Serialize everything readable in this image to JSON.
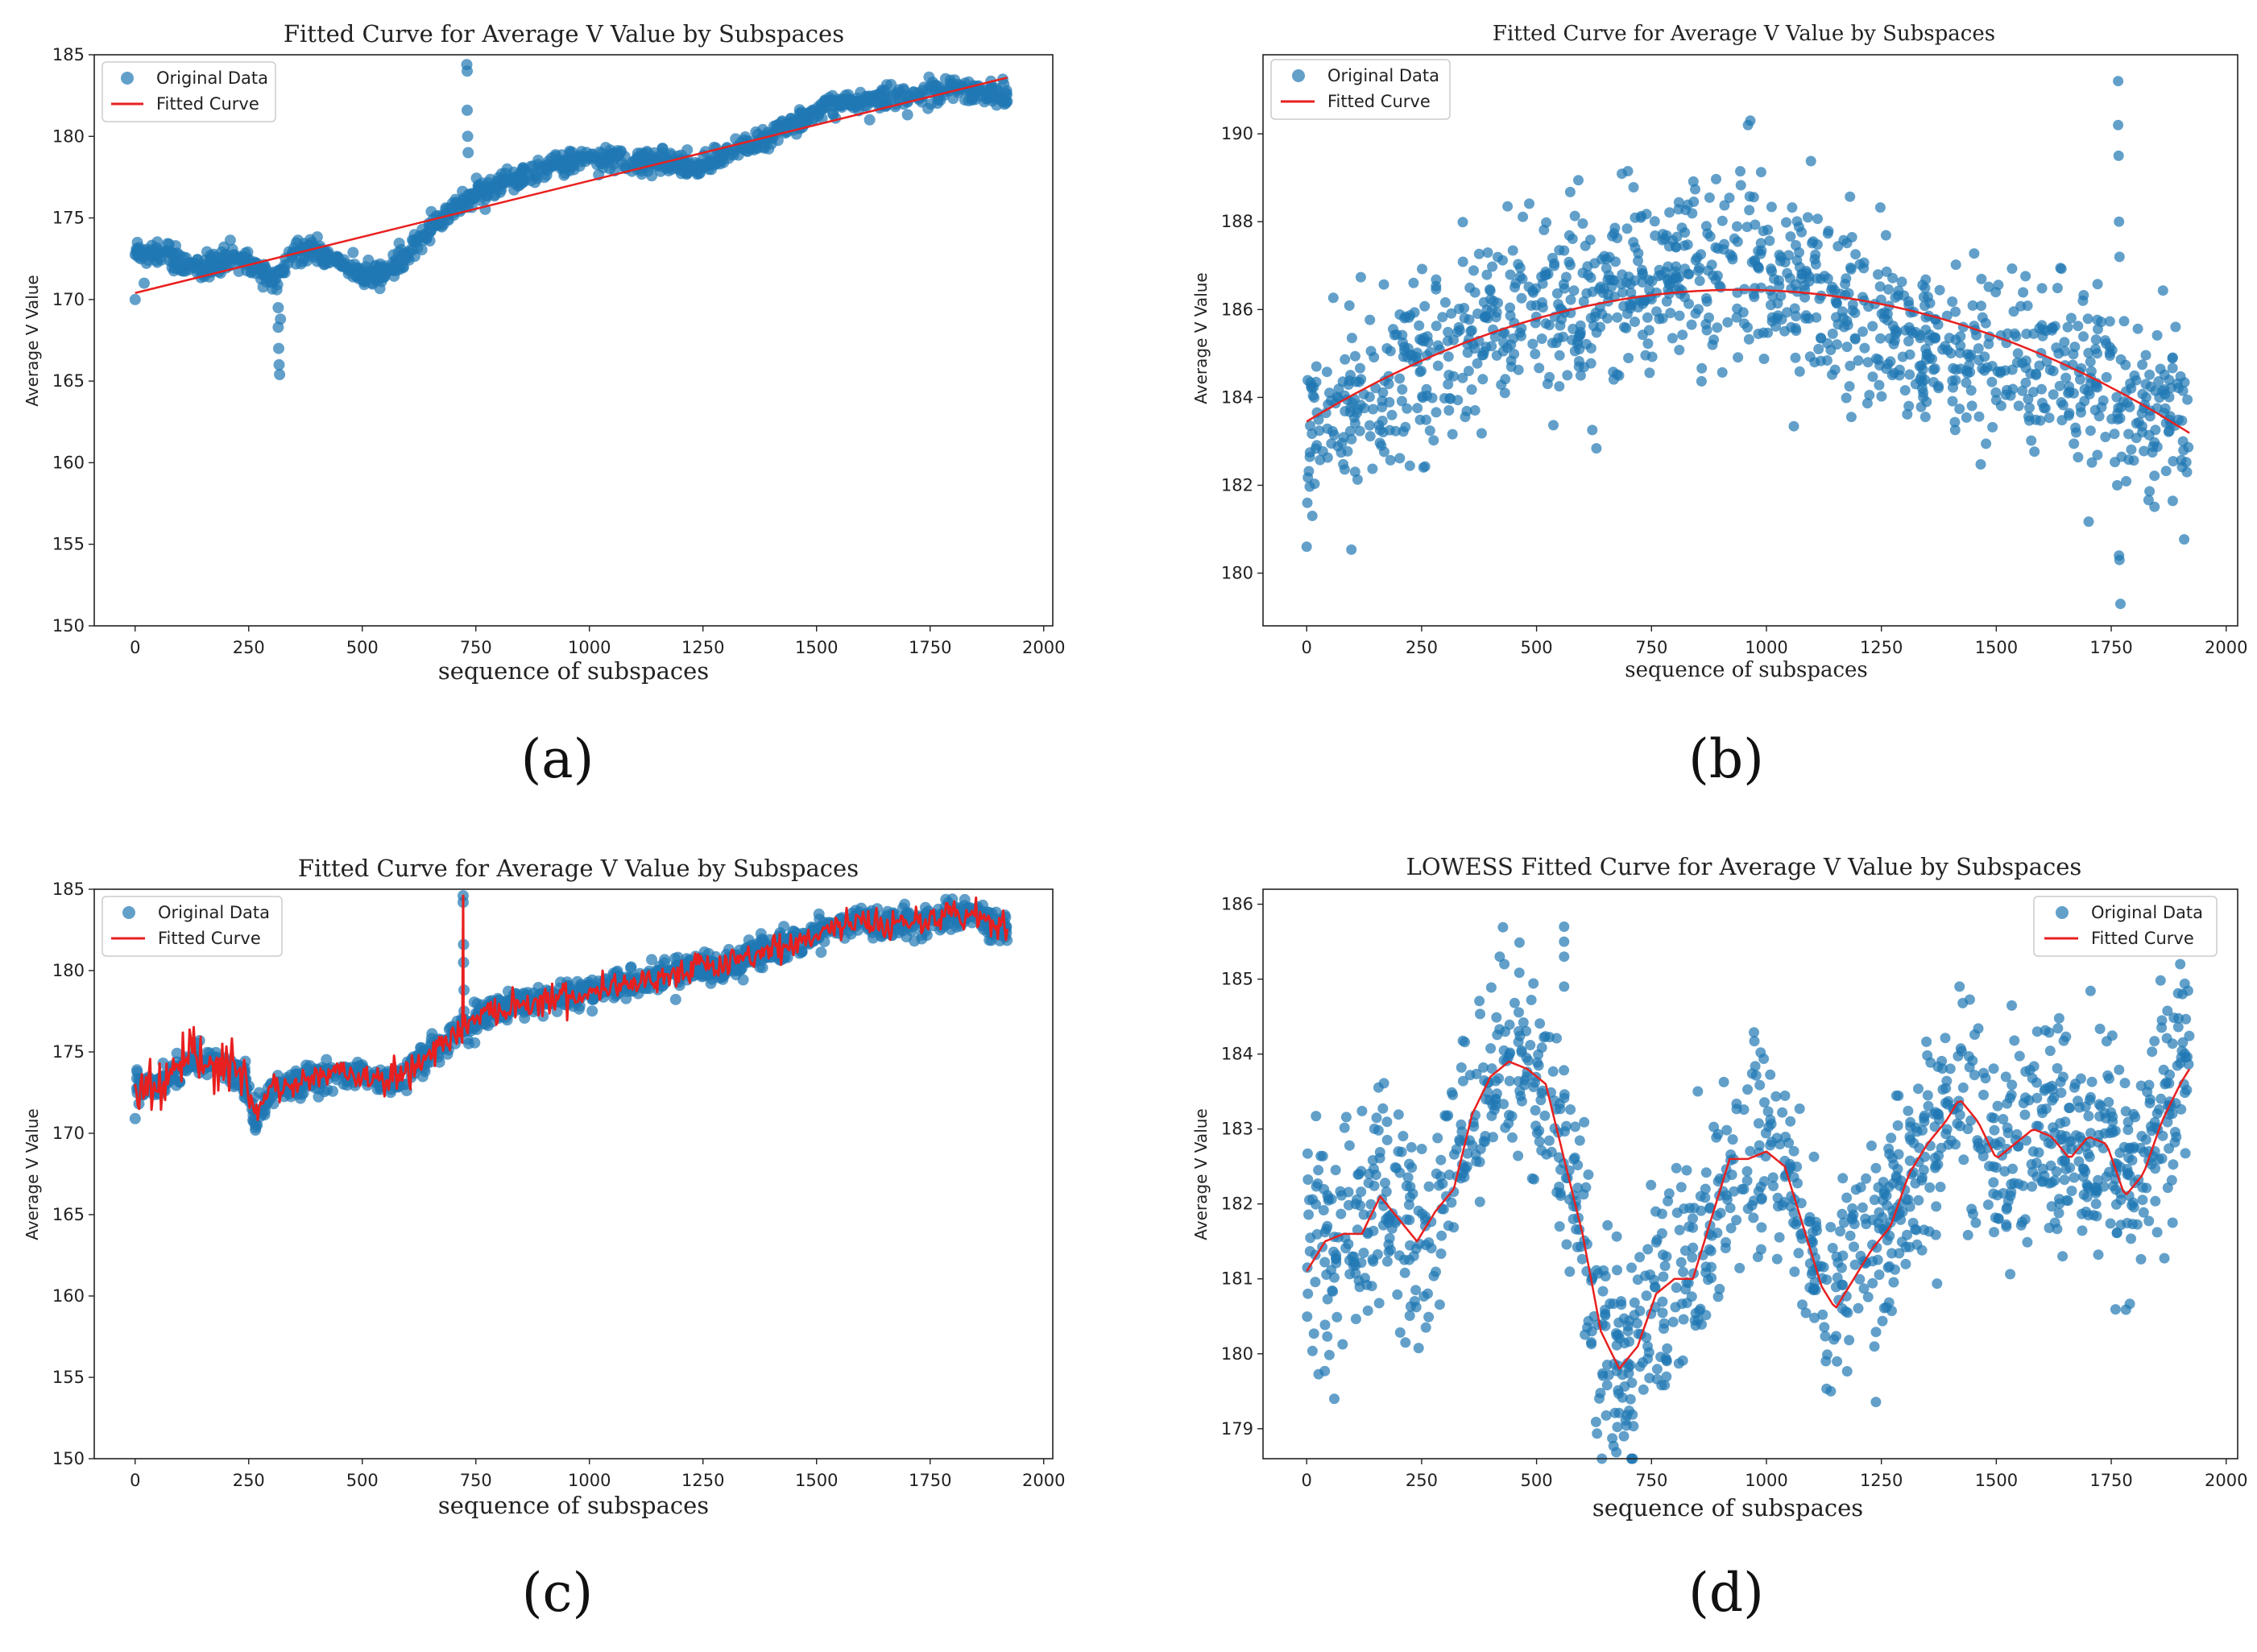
{
  "colors": {
    "points": "#1f77b4",
    "fit": "#e8201f",
    "axis": "#222222",
    "legend_border": "#cccccc"
  },
  "panel_labels": [
    "(a)",
    "(b)",
    "(c)",
    "(d)"
  ],
  "chart_data": [
    {
      "id": "a",
      "type": "scatter",
      "title": "Fitted Curve for Average V Value by Subspaces",
      "xlabel": "sequence of subspaces",
      "ylabel": "Average V Value",
      "xlim": [
        -90,
        2020
      ],
      "ylim": [
        150,
        185
      ],
      "xticks": [
        0,
        250,
        500,
        750,
        1000,
        1250,
        1500,
        1750,
        2000
      ],
      "yticks": [
        150,
        155,
        160,
        165,
        170,
        175,
        180,
        185
      ],
      "legend": {
        "position": "top-left",
        "entries": [
          "Original Data",
          "Fitted Curve"
        ]
      },
      "scatter": {
        "name": "Original Data",
        "n": 1100,
        "noise": 0.35,
        "trend": [
          [
            0,
            172.8
          ],
          [
            40,
            173.1
          ],
          [
            100,
            172.3
          ],
          [
            150,
            172.0
          ],
          [
            200,
            172.5
          ],
          [
            260,
            172.4
          ],
          [
            300,
            171.0
          ],
          [
            340,
            172.6
          ],
          [
            380,
            173.1
          ],
          [
            420,
            172.8
          ],
          [
            460,
            172.0
          ],
          [
            520,
            171.3
          ],
          [
            560,
            172.0
          ],
          [
            600,
            172.8
          ],
          [
            650,
            174.3
          ],
          [
            700,
            175.5
          ],
          [
            750,
            176.5
          ],
          [
            800,
            177.0
          ],
          [
            850,
            177.5
          ],
          [
            900,
            178.2
          ],
          [
            950,
            178.3
          ],
          [
            1000,
            178.7
          ],
          [
            1050,
            178.6
          ],
          [
            1100,
            178.4
          ],
          [
            1150,
            178.6
          ],
          [
            1200,
            178.2
          ],
          [
            1250,
            178.2
          ],
          [
            1300,
            178.8
          ],
          [
            1350,
            179.5
          ],
          [
            1400,
            180.0
          ],
          [
            1450,
            180.8
          ],
          [
            1500,
            181.5
          ],
          [
            1550,
            182.0
          ],
          [
            1600,
            182.2
          ],
          [
            1650,
            182.3
          ],
          [
            1700,
            182.4
          ],
          [
            1750,
            182.7
          ],
          [
            1800,
            183.0
          ],
          [
            1850,
            182.8
          ],
          [
            1920,
            182.5
          ]
        ],
        "outliers": [
          [
            315,
            169.5
          ],
          [
            315,
            168.3
          ],
          [
            316,
            167.0
          ],
          [
            317,
            166.0
          ],
          [
            318,
            165.4
          ],
          [
            312,
            170.6
          ],
          [
            320,
            168.8
          ],
          [
            730,
            184.4
          ],
          [
            731,
            184.0
          ],
          [
            731,
            181.6
          ],
          [
            732,
            180.0
          ],
          [
            733,
            179.0
          ],
          [
            20,
            171.0
          ],
          [
            0,
            170.0
          ],
          [
            5,
            173.5
          ],
          [
            1910,
            183.5
          ]
        ]
      },
      "fit": {
        "name": "Fitted Curve",
        "kind": "linear",
        "x": [
          0,
          1920
        ],
        "y": [
          170.4,
          183.6
        ]
      }
    },
    {
      "id": "b",
      "type": "scatter",
      "title": "Fitted Curve for Average V Value by Subspaces",
      "xlabel": "sequence of subspaces",
      "ylabel": "Average V Value",
      "xlim": [
        -95,
        2025
      ],
      "ylim": [
        178.8,
        191.8
      ],
      "xticks": [
        0,
        250,
        500,
        750,
        1000,
        1250,
        1500,
        1750,
        2000
      ],
      "yticks": [
        180,
        182,
        184,
        186,
        188,
        190
      ],
      "legend": {
        "position": "top-left",
        "entries": [
          "Original Data",
          "Fitted Curve"
        ]
      },
      "scatter": {
        "name": "Original Data",
        "n": 1150,
        "noise": 1.05,
        "trend": [
          [
            0,
            183.2
          ],
          [
            100,
            184.0
          ],
          [
            200,
            184.6
          ],
          [
            300,
            185.1
          ],
          [
            400,
            185.6
          ],
          [
            500,
            186.0
          ],
          [
            600,
            186.1
          ],
          [
            700,
            186.3
          ],
          [
            800,
            186.8
          ],
          [
            900,
            187.0
          ],
          [
            1000,
            186.8
          ],
          [
            1100,
            186.3
          ],
          [
            1200,
            185.8
          ],
          [
            1300,
            185.2
          ],
          [
            1400,
            185.0
          ],
          [
            1500,
            184.9
          ],
          [
            1600,
            184.8
          ],
          [
            1700,
            184.5
          ],
          [
            1800,
            184.0
          ],
          [
            1920,
            183.2
          ]
        ],
        "outliers": [
          [
            0,
            180.6
          ],
          [
            1765,
            191.2
          ],
          [
            1765,
            190.2
          ],
          [
            1766,
            189.5
          ],
          [
            1767,
            188.0
          ],
          [
            1768,
            187.2
          ],
          [
            1767,
            180.4
          ],
          [
            1768,
            180.3
          ],
          [
            1770,
            179.3
          ],
          [
            1763,
            182.0
          ],
          [
            1764,
            183.5
          ],
          [
            960,
            190.2
          ],
          [
            965,
            190.3
          ]
        ]
      },
      "fit": {
        "name": "Fitted Curve",
        "kind": "quadratic",
        "vertex_x": 940,
        "vertex_y": 186.45,
        "x": [
          0,
          1920
        ],
        "y_at_start": 183.45
      }
    },
    {
      "id": "c",
      "type": "scatter",
      "title": "Fitted Curve for Average V Value by Subspaces",
      "xlabel": "sequence of subspaces",
      "ylabel": "Average V Value",
      "xlim": [
        -90,
        2020
      ],
      "ylim": [
        150,
        185
      ],
      "xticks": [
        0,
        250,
        500,
        750,
        1000,
        1250,
        1500,
        1750,
        2000
      ],
      "yticks": [
        150,
        155,
        160,
        165,
        170,
        175,
        180,
        185
      ],
      "legend": {
        "position": "top-left",
        "entries": [
          "Original Data",
          "Fitted Curve"
        ]
      },
      "scatter": {
        "name": "Original Data",
        "n": 1400,
        "noise": 0.45,
        "trend": [
          [
            0,
            173.0
          ],
          [
            40,
            172.9
          ],
          [
            80,
            173.6
          ],
          [
            120,
            174.5
          ],
          [
            160,
            174.6
          ],
          [
            200,
            174.0
          ],
          [
            240,
            173.3
          ],
          [
            265,
            171.0
          ],
          [
            300,
            172.8
          ],
          [
            350,
            173.0
          ],
          [
            400,
            173.5
          ],
          [
            450,
            173.8
          ],
          [
            500,
            173.5
          ],
          [
            550,
            173.2
          ],
          [
            600,
            173.8
          ],
          [
            650,
            175.0
          ],
          [
            700,
            176.0
          ],
          [
            720,
            176.5
          ],
          [
            760,
            177.3
          ],
          [
            800,
            177.6
          ],
          [
            850,
            178.0
          ],
          [
            900,
            178.2
          ],
          [
            950,
            178.4
          ],
          [
            1000,
            178.6
          ],
          [
            1050,
            179.2
          ],
          [
            1100,
            179.3
          ],
          [
            1150,
            179.6
          ],
          [
            1200,
            179.9
          ],
          [
            1250,
            180.3
          ],
          [
            1300,
            180.2
          ],
          [
            1350,
            180.8
          ],
          [
            1400,
            181.3
          ],
          [
            1450,
            181.6
          ],
          [
            1500,
            182.3
          ],
          [
            1550,
            182.8
          ],
          [
            1600,
            183.0
          ],
          [
            1650,
            182.8
          ],
          [
            1700,
            183.1
          ],
          [
            1750,
            183.1
          ],
          [
            1800,
            183.5
          ],
          [
            1850,
            183.4
          ],
          [
            1920,
            182.4
          ]
        ],
        "outliers": [
          [
            722,
            184.6
          ],
          [
            722,
            184.2
          ],
          [
            723,
            181.6
          ],
          [
            723,
            180.5
          ],
          [
            724,
            178.8
          ],
          [
            724,
            177.5
          ],
          [
            0,
            170.9
          ],
          [
            265,
            170.2
          ]
        ]
      },
      "fit": {
        "name": "Fitted Curve",
        "kind": "interpolating",
        "follows": "Original Data"
      }
    },
    {
      "id": "d",
      "type": "scatter",
      "title": "LOWESS Fitted Curve for Average V Value by Subspaces",
      "xlabel": "sequence of subspaces",
      "ylabel": "Average V Value",
      "xlim": [
        -95,
        2025
      ],
      "ylim": [
        178.6,
        186.2
      ],
      "xticks": [
        0,
        250,
        500,
        750,
        1000,
        1250,
        1500,
        1750,
        2000
      ],
      "yticks": [
        179,
        180,
        181,
        182,
        183,
        184,
        185,
        186
      ],
      "legend": {
        "position": "top-right",
        "entries": [
          "Original Data",
          "Fitted Curve"
        ]
      },
      "scatter": {
        "name": "Original Data",
        "n": 1300,
        "noise": 0.7,
        "trend": [
          [
            0,
            181.1
          ],
          [
            40,
            181.5
          ],
          [
            80,
            181.6
          ],
          [
            120,
            181.6
          ],
          [
            160,
            182.1
          ],
          [
            200,
            181.8
          ],
          [
            240,
            181.5
          ],
          [
            280,
            181.9
          ],
          [
            320,
            182.2
          ],
          [
            360,
            183.2
          ],
          [
            400,
            183.7
          ],
          [
            440,
            183.9
          ],
          [
            480,
            183.8
          ],
          [
            520,
            183.6
          ],
          [
            560,
            182.6
          ],
          [
            600,
            181.6
          ],
          [
            640,
            180.3
          ],
          [
            680,
            179.8
          ],
          [
            720,
            180.1
          ],
          [
            760,
            180.8
          ],
          [
            800,
            181.0
          ],
          [
            840,
            181.0
          ],
          [
            880,
            181.8
          ],
          [
            920,
            182.6
          ],
          [
            960,
            182.6
          ],
          [
            1000,
            182.7
          ],
          [
            1040,
            182.5
          ],
          [
            1080,
            181.7
          ],
          [
            1120,
            180.9
          ],
          [
            1150,
            180.6
          ],
          [
            1190,
            181.0
          ],
          [
            1230,
            181.4
          ],
          [
            1270,
            181.7
          ],
          [
            1310,
            182.4
          ],
          [
            1350,
            182.8
          ],
          [
            1390,
            183.1
          ],
          [
            1420,
            183.4
          ],
          [
            1460,
            183.1
          ],
          [
            1500,
            182.6
          ],
          [
            1540,
            182.8
          ],
          [
            1580,
            183.0
          ],
          [
            1620,
            182.9
          ],
          [
            1660,
            182.6
          ],
          [
            1700,
            182.9
          ],
          [
            1740,
            182.8
          ],
          [
            1780,
            182.1
          ],
          [
            1820,
            182.4
          ],
          [
            1860,
            183.1
          ],
          [
            1900,
            183.6
          ],
          [
            1920,
            183.8
          ]
        ],
        "outliers": [
          [
            560,
            185.7
          ],
          [
            560,
            185.5
          ],
          [
            560,
            185.3
          ],
          [
            560,
            184.9
          ],
          [
            420,
            185.3
          ],
          [
            430,
            185.2
          ],
          [
            1420,
            184.9
          ],
          [
            1900,
            185.2
          ],
          [
            1905,
            184.8
          ],
          [
            60,
            179.4
          ],
          [
            690,
            178.9
          ],
          [
            1140,
            179.5
          ]
        ]
      },
      "fit": {
        "name": "Fitted Curve",
        "kind": "lowess"
      }
    }
  ]
}
